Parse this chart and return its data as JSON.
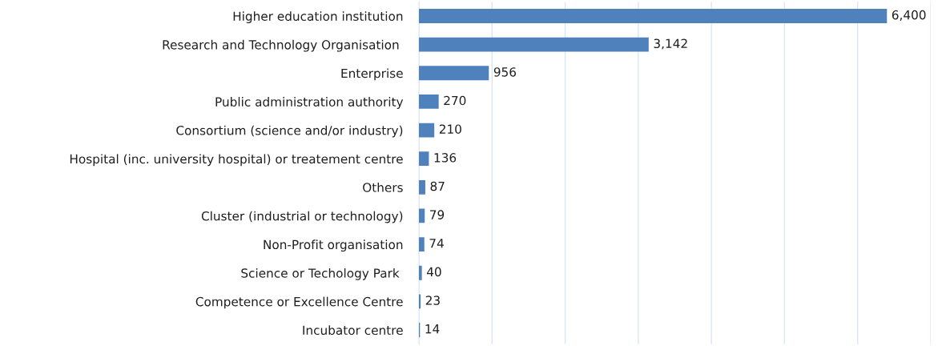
{
  "chart_data": {
    "type": "bar",
    "orientation": "horizontal",
    "categories": [
      "Higher education institution",
      "Research and Technology Organisation ",
      "Enterprise",
      "Public administration authority",
      "Consortium (science and/or industry)",
      "Hospital (inc. university hospital) or treatement centre",
      "Others",
      "Cluster (industrial or technology)",
      "Non-Profit organisation",
      "Science or Techology Park ",
      "Competence or Excellence Centre",
      "Incubator centre"
    ],
    "values": [
      6400,
      3142,
      956,
      270,
      210,
      136,
      87,
      79,
      74,
      40,
      23,
      14
    ],
    "value_labels": [
      "6,400",
      "3,142",
      "956",
      "270",
      "210",
      "136",
      "87",
      "79",
      "74",
      "40",
      "23",
      "14"
    ],
    "color": "#4f81bd",
    "xlim": [
      0,
      7000
    ],
    "xticks": [
      {
        "value": 0,
        "label": null
      },
      {
        "value": 1000,
        "label": null
      },
      {
        "value": 2000,
        "label": null
      },
      {
        "value": 3000,
        "label": null
      },
      {
        "value": 4000,
        "label": null
      },
      {
        "value": 5000,
        "label": null
      },
      {
        "value": 6000,
        "label": null
      },
      {
        "value": 7000,
        "label": null
      }
    ],
    "grid": "x",
    "legend": false
  }
}
